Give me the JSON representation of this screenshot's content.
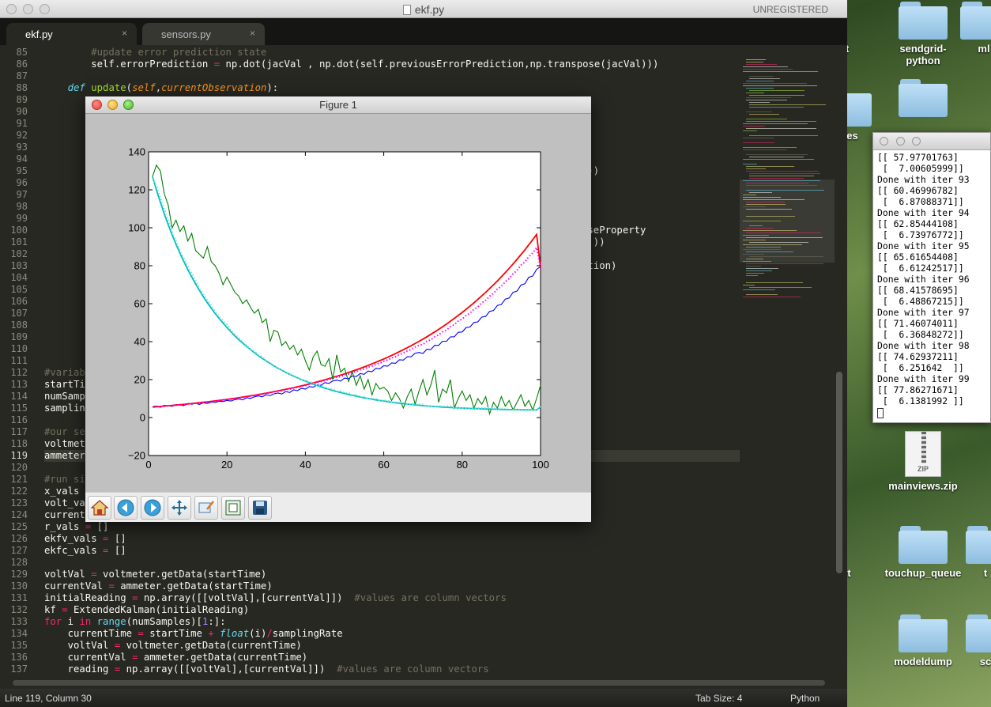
{
  "editor": {
    "title": "ekf.py",
    "registration": "UNREGISTERED",
    "tabs": [
      {
        "label": "ekf.py",
        "close": "×",
        "active": true
      },
      {
        "label": "sensors.py",
        "close": "×",
        "active": false
      }
    ],
    "status": {
      "position": "Line 119, Column 30",
      "tab_size": "Tab Size: 4",
      "syntax": "Python"
    }
  },
  "code": {
    "visible_fragments": {
      "l94": ")))",
      "l100": "iseProperty",
      "l101": ") ))",
      "l103": "ction)"
    }
  },
  "figure": {
    "title": "Figure 1",
    "toolbar": [
      {
        "name": "home-icon",
        "label": "Home"
      },
      {
        "name": "back-icon",
        "label": "Back"
      },
      {
        "name": "forward-icon",
        "label": "Forward"
      },
      {
        "name": "pan-icon",
        "label": "Pan"
      },
      {
        "name": "zoom-icon",
        "label": "Zoom"
      },
      {
        "name": "subplots-icon",
        "label": "Subplots"
      },
      {
        "name": "save-icon",
        "label": "Save"
      }
    ]
  },
  "chart_data": {
    "type": "line",
    "xlim": [
      0,
      100
    ],
    "ylim": [
      -20,
      140
    ],
    "xticks": [
      "0",
      "20",
      "40",
      "60",
      "80",
      "100"
    ],
    "yticks": [
      "−20",
      "0",
      "20",
      "40",
      "60",
      "80",
      "100",
      "120",
      "140"
    ],
    "grid": false,
    "series": [
      {
        "color": "#0000ff",
        "style": "noisy measurement (voltage)",
        "values": [
          5.8,
          6.1,
          5.4,
          6.5,
          6.2,
          5.9,
          6.8,
          6.6,
          6.3,
          7.4,
          7.0,
          7.5,
          6.9,
          7.8,
          7.4,
          8.2,
          7.9,
          8.6,
          8.4,
          9.0,
          8.7,
          9.4,
          9.8,
          9.3,
          10.4,
          10.1,
          10.9,
          11.4,
          10.9,
          12.0,
          11.6,
          12.5,
          12.9,
          12.4,
          13.7,
          13.2,
          14.6,
          14.2,
          15.4,
          15.0,
          16.3,
          16.0,
          17.2,
          17.0,
          18.4,
          18.0,
          19.3,
          19.7,
          19.2,
          20.8,
          20.5,
          21.9,
          21.6,
          23.2,
          22.8,
          24.5,
          24.2,
          25.9,
          25.7,
          27.3,
          27.1,
          28.8,
          28.6,
          30.4,
          30.3,
          32.1,
          32.0,
          33.9,
          34.3,
          33.8,
          36.0,
          35.8,
          38.1,
          38.0,
          40.2,
          40.2,
          42.5,
          42.6,
          44.9,
          45.1,
          47.4,
          47.7,
          50.1,
          50.4,
          52.9,
          53.3,
          55.9,
          56.4,
          59.1,
          59.6,
          62.4,
          63.0,
          66.0,
          66.6,
          69.8,
          70.5,
          73.9,
          74.6,
          78.1,
          79.5
        ]
      },
      {
        "color": "#ff0000",
        "style": "true voltage",
        "values": [
          5.5,
          5.68,
          5.85,
          6.03,
          6.2,
          6.39,
          6.57,
          6.77,
          6.96,
          7.17,
          7.38,
          7.6,
          7.82,
          8.05,
          8.29,
          8.54,
          8.79,
          9.05,
          9.32,
          9.6,
          9.88,
          10.17,
          10.47,
          10.79,
          11.11,
          11.44,
          11.77,
          12.12,
          12.48,
          12.85,
          13.23,
          13.63,
          14.03,
          14.45,
          14.88,
          15.32,
          15.77,
          16.24,
          16.72,
          17.21,
          17.72,
          18.25,
          18.79,
          19.35,
          19.92,
          20.51,
          21.12,
          21.75,
          22.39,
          23.05,
          23.74,
          24.44,
          25.16,
          25.91,
          26.68,
          27.47,
          28.28,
          29.12,
          29.98,
          30.87,
          31.79,
          32.73,
          33.7,
          34.7,
          35.73,
          36.79,
          37.88,
          39.0,
          40.15,
          41.34,
          42.57,
          43.83,
          45.13,
          46.47,
          47.85,
          49.27,
          50.73,
          52.23,
          53.78,
          55.37,
          57.01,
          58.7,
          60.44,
          62.24,
          64.08,
          65.98,
          67.94,
          69.95,
          72.02,
          74.16,
          76.36,
          78.62,
          80.95,
          83.35,
          85.82,
          88.37,
          90.99,
          93.69,
          96.46,
          79.3
        ]
      },
      {
        "color": "#ff00ff",
        "style": "filtered voltage (dotted)",
        "values": [
          5.6,
          5.9,
          5.7,
          6.2,
          6.2,
          6.3,
          6.6,
          6.7,
          6.8,
          7.2,
          7.3,
          7.6,
          7.6,
          8.0,
          8.1,
          8.5,
          8.6,
          9.0,
          9.2,
          9.5,
          9.6,
          10.0,
          10.4,
          10.5,
          11.0,
          11.2,
          11.7,
          12.1,
          12.3,
          12.8,
          13.0,
          13.5,
          13.9,
          14.1,
          14.7,
          15.0,
          15.6,
          15.9,
          16.5,
          16.8,
          17.5,
          17.8,
          18.5,
          18.9,
          19.6,
          20.0,
          20.7,
          21.3,
          21.6,
          22.5,
          22.9,
          23.8,
          24.2,
          25.2,
          25.6,
          26.6,
          27.1,
          28.1,
          28.6,
          29.7,
          30.3,
          31.4,
          32.0,
          33.2,
          33.9,
          35.1,
          35.8,
          37.1,
          38.1,
          38.6,
          40.2,
          41.0,
          42.6,
          43.5,
          45.2,
          46.1,
          47.9,
          48.9,
          50.8,
          51.9,
          53.8,
          55.0,
          57.0,
          58.3,
          60.4,
          61.8,
          63.9,
          65.4,
          67.7,
          69.2,
          71.6,
          73.2,
          75.8,
          77.5,
          80.2,
          82.0,
          84.8,
          86.7,
          89.6,
          78.6
        ]
      },
      {
        "color": "#008000",
        "style": "noisy measurement (current)",
        "values": [
          127,
          133,
          130,
          118,
          112,
          100,
          104,
          98,
          101,
          93,
          97,
          88,
          86,
          84,
          90,
          82,
          80,
          76,
          70,
          74,
          70,
          66,
          64,
          60,
          62,
          58,
          55,
          57,
          50,
          52,
          40,
          46,
          45,
          38,
          40,
          36,
          38,
          33,
          36,
          30,
          25,
          32,
          35,
          28,
          27,
          31,
          20,
          33,
          24,
          26,
          19,
          24,
          17,
          22,
          15,
          20,
          12,
          18,
          15,
          16,
          14,
          9,
          13,
          10,
          5,
          11,
          15,
          7,
          14,
          20,
          12,
          17,
          25,
          8,
          15,
          13,
          20,
          5,
          10,
          14,
          9,
          12,
          5,
          10,
          7,
          11,
          2,
          8,
          5,
          11,
          6,
          9,
          4,
          8,
          12,
          6,
          9,
          4,
          10,
          17
        ]
      },
      {
        "color": "#00bfbf",
        "style": "true current",
        "values": [
          127.0,
          120.0,
          113.5,
          107.4,
          101.7,
          96.3,
          91.3,
          86.6,
          82.2,
          78.0,
          74.1,
          70.4,
          66.9,
          63.6,
          60.5,
          57.6,
          54.8,
          52.2,
          49.8,
          47.4,
          45.2,
          43.1,
          41.1,
          39.3,
          37.5,
          35.8,
          34.2,
          32.6,
          31.2,
          29.8,
          28.5,
          27.2,
          26.0,
          24.9,
          23.8,
          22.8,
          21.8,
          20.9,
          20.0,
          19.2,
          18.4,
          17.6,
          16.9,
          16.2,
          15.5,
          14.9,
          14.3,
          13.7,
          13.2,
          12.7,
          12.2,
          11.7,
          11.3,
          10.8,
          10.4,
          10.0,
          9.7,
          9.3,
          9.0,
          8.7,
          8.4,
          8.1,
          7.8,
          7.6,
          7.3,
          7.1,
          6.9,
          6.7,
          6.5,
          6.3,
          6.1,
          6.0,
          5.8,
          5.7,
          5.5,
          5.4,
          5.3,
          5.2,
          5.1,
          5.0,
          4.9,
          4.8,
          4.7,
          4.7,
          4.6,
          4.5,
          4.5,
          4.4,
          4.4,
          4.3,
          4.3,
          4.2,
          4.2,
          4.2,
          4.1,
          4.1,
          4.1,
          4.1,
          4.0,
          5.5
        ]
      },
      {
        "color": "#7fdfdf",
        "style": "filtered current (dotted)",
        "values": [
          126,
          122,
          116,
          110,
          104,
          98,
          93,
          88,
          84,
          80,
          76,
          72,
          68,
          65,
          62,
          59,
          56,
          53,
          51,
          49,
          46,
          44,
          42,
          40,
          38,
          36,
          35,
          33,
          32,
          30,
          29,
          27,
          26,
          25,
          24,
          23,
          22,
          21,
          20,
          19,
          19,
          18,
          17,
          17,
          16,
          15,
          15,
          14,
          14,
          13,
          13,
          12,
          12,
          11,
          11,
          10,
          10,
          10,
          9,
          9,
          9,
          8,
          8,
          8,
          8,
          7,
          7,
          7,
          7,
          7,
          6,
          6,
          6,
          6,
          6,
          6,
          6,
          5,
          5,
          5,
          5,
          5,
          5,
          5,
          5,
          5,
          5,
          5,
          4,
          4,
          4,
          4,
          4,
          4,
          4,
          4,
          4,
          4,
          4,
          6
        ]
      }
    ]
  },
  "terminal": {
    "lines": [
      "[[ 57.97701763]",
      " [  7.00605999]]",
      "Done with iter 93",
      "[[ 60.46996782]",
      " [  6.87088371]]",
      "Done with iter 94",
      "[[ 62.85444108]",
      " [  6.73976772]]",
      "Done with iter 95",
      "[[ 65.61654408]",
      " [  6.61242517]]",
      "Done with iter 96",
      "[[ 68.41578695]",
      " [  6.48867215]]",
      "Done with iter 97",
      "[[ 71.46074011]",
      " [  6.36848272]]",
      "Done with iter 98",
      "[[ 74.62937211]",
      " [  6.251642  ]]",
      "Done with iter 99",
      "[[ 77.86271671]",
      " [  6.1381992 ]]"
    ]
  },
  "desktop": {
    "icons": [
      {
        "label": "ect",
        "type": "folder"
      },
      {
        "label": "sendgrid-python",
        "type": "folder"
      },
      {
        "label": "ml",
        "type": "folder"
      },
      {
        "label": "ures",
        "type": "folder"
      },
      {
        "label": "mainviews.zip",
        "type": "zip"
      },
      {
        "label": "ZIP",
        "type": "zip-badge"
      },
      {
        "label": "rt",
        "type": "folder"
      },
      {
        "label": "touchup_queue",
        "type": "folder"
      },
      {
        "label": "t",
        "type": "folder"
      },
      {
        "label": "modeldump",
        "type": "folder"
      },
      {
        "label": "sc",
        "type": "folder"
      }
    ]
  }
}
